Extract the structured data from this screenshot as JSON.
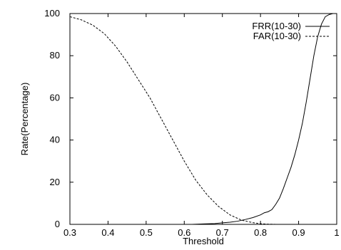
{
  "chart_data": {
    "type": "line",
    "xlabel": "Threshold",
    "ylabel": "Rate(Percentage)",
    "xlim": [
      0.3,
      1.0
    ],
    "ylim": [
      0,
      100
    ],
    "xticks": [
      "0.3",
      "0.4",
      "0.5",
      "0.6",
      "0.7",
      "0.8",
      "0.9",
      "1"
    ],
    "yticks": [
      "0",
      "20",
      "40",
      "60",
      "80",
      "100"
    ],
    "grid": false,
    "legend_position": "top-right",
    "series": [
      {
        "name": "FRR(10-30)",
        "line_style": "solid",
        "color": "#000000",
        "x": [
          0.3,
          0.62,
          0.65,
          0.68,
          0.7,
          0.72,
          0.74,
          0.76,
          0.78,
          0.8,
          0.81,
          0.82,
          0.83,
          0.84,
          0.85,
          0.86,
          0.87,
          0.88,
          0.89,
          0.9,
          0.91,
          0.92,
          0.93,
          0.94,
          0.95,
          0.96,
          0.97,
          0.98,
          0.99,
          1.0
        ],
        "values": [
          0,
          0,
          0.2,
          0.4,
          0.7,
          1.0,
          1.5,
          2.3,
          3.2,
          4.5,
          5.5,
          6.0,
          7.0,
          9.5,
          12.5,
          17,
          22,
          27,
          33,
          40,
          48,
          58,
          69,
          80,
          89,
          95,
          98.5,
          99.5,
          100,
          100
        ]
      },
      {
        "name": "FAR(10-30)",
        "line_style": "dashed",
        "color": "#000000",
        "x": [
          0.3,
          0.33,
          0.36,
          0.39,
          0.42,
          0.45,
          0.48,
          0.51,
          0.54,
          0.57,
          0.6,
          0.63,
          0.66,
          0.69,
          0.72,
          0.75,
          0.78,
          0.8,
          0.82,
          0.84
        ],
        "values": [
          98.5,
          97,
          94.5,
          90.5,
          84.5,
          77,
          68.5,
          60,
          50,
          40,
          30,
          21,
          14,
          8.5,
          4.5,
          2,
          0.8,
          0.3,
          0.1,
          0
        ]
      }
    ]
  }
}
